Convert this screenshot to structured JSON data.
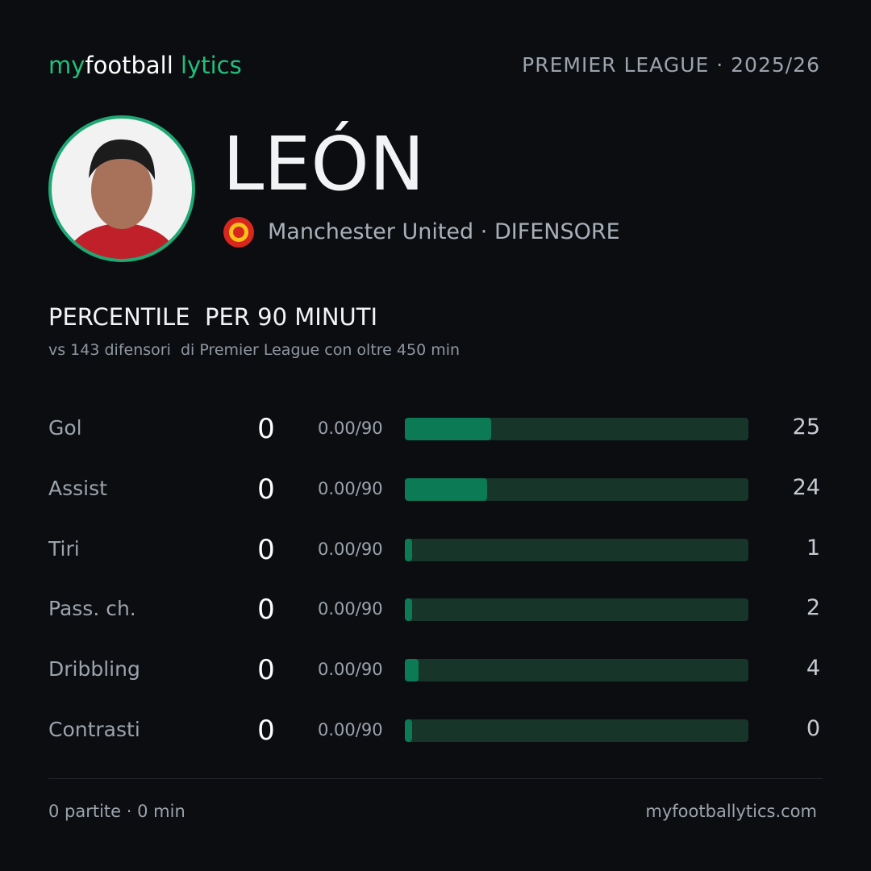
{
  "header": {
    "brand": [
      "my",
      "football",
      "lytics"
    ],
    "league": "PREMIER LEAGUE · 2025/26"
  },
  "player": {
    "name": "LEÓN",
    "team": "Manchester United",
    "position": "DIFENSORE"
  },
  "section": {
    "title": "PERCENTILE  PER 90 MINUTI",
    "subtitle": "vs 143 difensori  di Premier League con oltre 450 min"
  },
  "stats": [
    {
      "label": "Gol",
      "value": 0,
      "per90": "0.00/90",
      "percentile": 25
    },
    {
      "label": "Assist",
      "value": 0,
      "per90": "0.00/90",
      "percentile": 24
    },
    {
      "label": "Tiri",
      "value": 0,
      "per90": "0.00/90",
      "percentile": 1
    },
    {
      "label": "Pass. ch.",
      "value": 0,
      "per90": "0.00/90",
      "percentile": 2
    },
    {
      "label": "Dribbling",
      "value": 0,
      "per90": "0.00/90",
      "percentile": 4
    },
    {
      "label": "Contrasti",
      "value": 0,
      "per90": "0.00/90",
      "percentile": 0
    }
  ],
  "footer": {
    "summary": "0 partite · 0 min",
    "site": "myfootballytics.com"
  }
}
